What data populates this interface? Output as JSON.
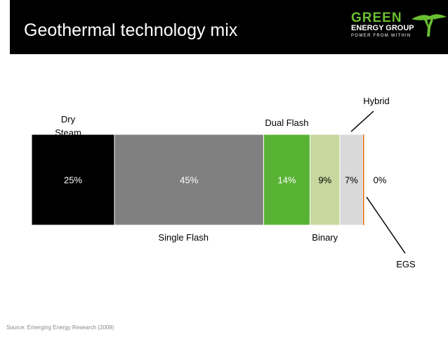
{
  "slide": {
    "title": "Geothermal technology mix",
    "source": "Source: Emerging Energy Research (2009)"
  },
  "logo": {
    "line1": "GREEN",
    "line2": "ENERGY GROUP",
    "tagline": "POWER FROM WITHIN"
  },
  "colors": {
    "header_bg": "#000000",
    "brand_green": "#6bbf33"
  },
  "chart_data": {
    "type": "bar",
    "stacked": true,
    "orientation": "horizontal",
    "title": "",
    "series": [
      {
        "name": "Dry Steam",
        "value": 25,
        "data_label": "25%",
        "color": "#000000",
        "label_color": "#ffffff"
      },
      {
        "name": "Single Flash",
        "value": 45,
        "data_label": "45%",
        "color": "#808080",
        "label_color": "#ffffff"
      },
      {
        "name": "Dual Flash",
        "value": 14,
        "data_label": "14%",
        "color": "#58b234",
        "label_color": "#ffffff"
      },
      {
        "name": "Binary",
        "value": 9,
        "data_label": "9%",
        "color": "#c6d89e",
        "label_color": "#000000"
      },
      {
        "name": "Hybrid",
        "value": 7,
        "data_label": "7%",
        "color": "#d9d9d9",
        "label_color": "#000000"
      },
      {
        "name": "EGS",
        "value": 0,
        "data_label": "0%",
        "color": "#e46c0a",
        "label_color": "#000000"
      }
    ],
    "xlim": [
      0,
      100
    ],
    "grid": false
  }
}
